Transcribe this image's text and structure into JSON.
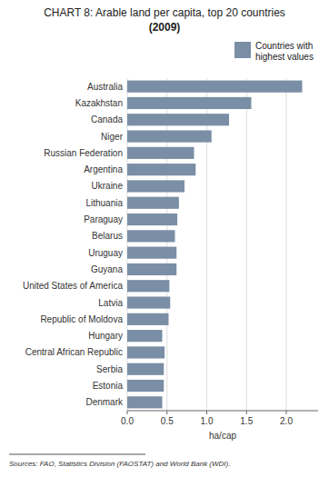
{
  "chart_data": {
    "type": "bar",
    "orientation": "horizontal",
    "title": "CHART 8: Arable land per capita, top 20 countries",
    "subtitle": "(2009)",
    "categories": [
      "Denmark",
      "Estonia",
      "Serbia",
      "Central African Republic",
      "Hungary",
      "Republic of Moldova",
      "Latvia",
      "United States of America",
      "Guyana",
      "Uruguay",
      "Belarus",
      "Paraguay",
      "Lithuania",
      "Ukraine",
      "Argentina",
      "Russian Federation",
      "Niger",
      "Canada",
      "Kazakhstan",
      "Australia"
    ],
    "series": [
      {
        "name": "Countries with\nhighest values",
        "color": "#7a8fa6",
        "values": [
          0.44,
          0.46,
          0.46,
          0.47,
          0.44,
          0.52,
          0.54,
          0.53,
          0.62,
          0.62,
          0.6,
          0.63,
          0.65,
          0.72,
          0.86,
          0.84,
          1.06,
          1.28,
          1.56,
          2.2
        ]
      }
    ],
    "xlabel": "ha/cap",
    "xlim": [
      0,
      2.4
    ],
    "xticks": [
      {
        "value": 0,
        "label": "0.0"
      },
      0.5,
      {
        "value": 1,
        "label": "1.0"
      },
      1.5,
      {
        "value": 2,
        "label": "2.0"
      }
    ],
    "grid": true,
    "legend": "upper right",
    "annotations": [
      "Sources: FAO, Statistics Division (FAOSTAT) and World Bank (WDI)."
    ]
  }
}
